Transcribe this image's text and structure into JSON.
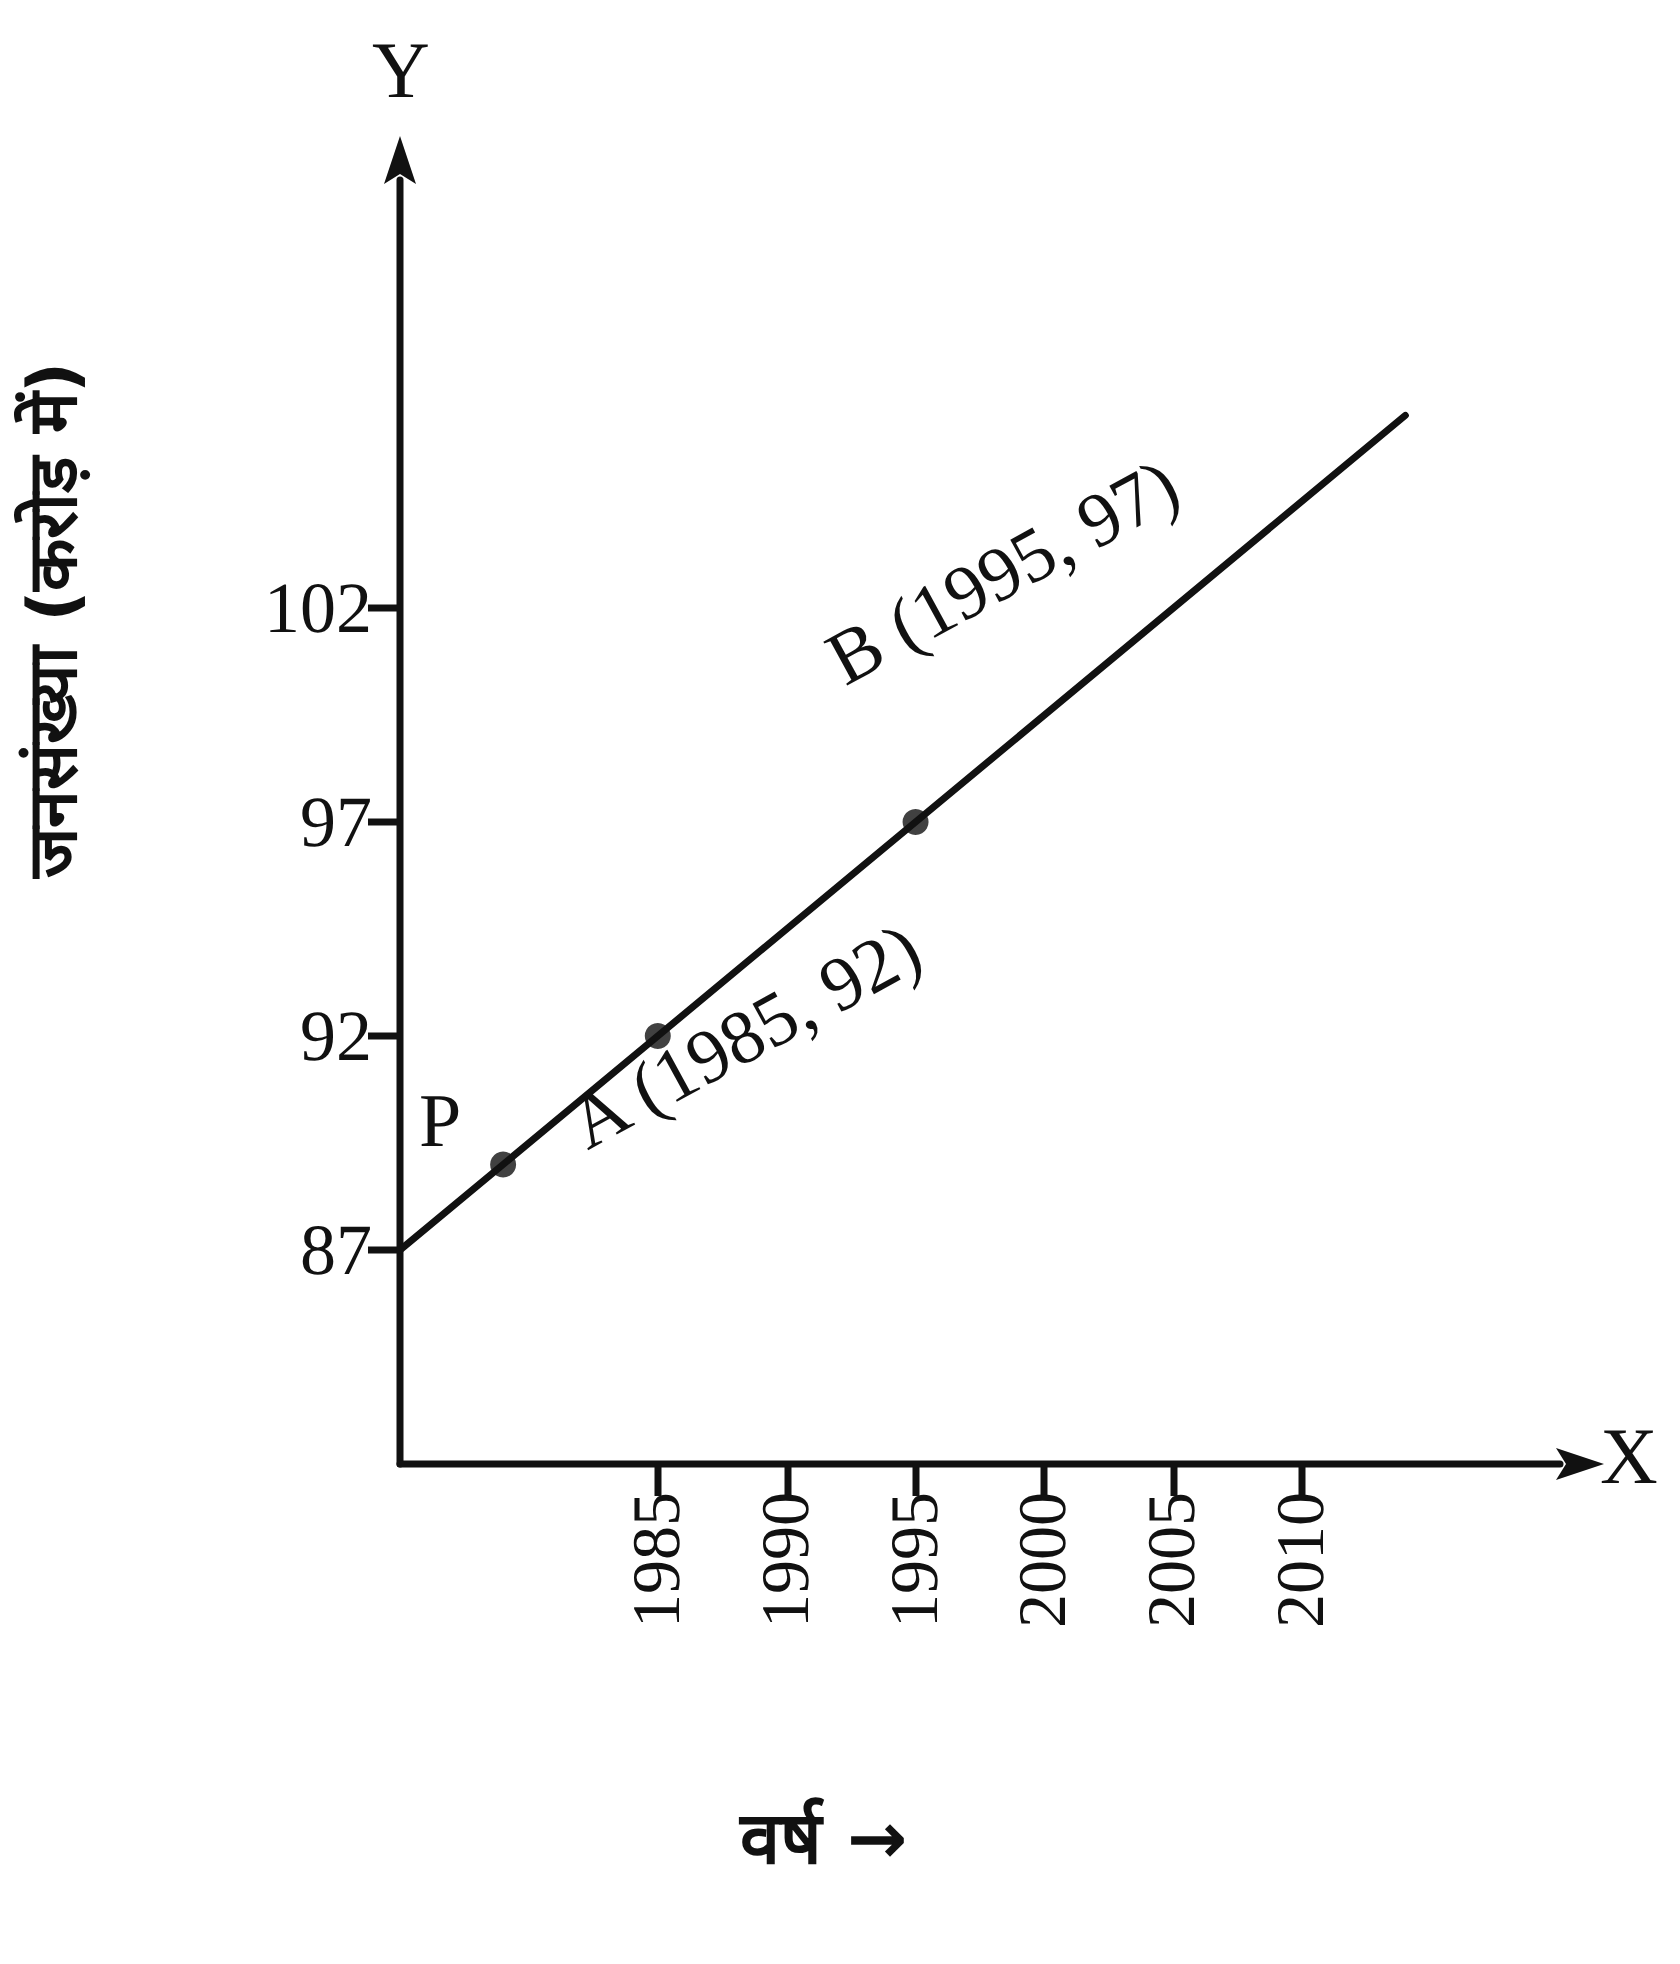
{
  "chart_data": {
    "type": "line",
    "xlabel": "वर्ष →",
    "ylabel": "जनसंख्या (करोड़ में)",
    "xlim": [
      1975,
      2020
    ],
    "xticks": [
      1985,
      1990,
      1995,
      2000,
      2005,
      2010
    ],
    "ylim": [
      82,
      112
    ],
    "yticks": [
      87,
      92,
      97,
      102
    ],
    "series": [
      {
        "color": "#111111",
        "x": [
          1975,
          2014
        ],
        "values": [
          87,
          106.5
        ],
        "marker": "none"
      },
      {
        "type": "scatter",
        "color": "#111111",
        "x": [
          1979,
          1985,
          1995
        ],
        "values": [
          89,
          92,
          97
        ],
        "marker": "circle"
      }
    ],
    "annotations": [
      "Y",
      "X",
      {
        "text": "P",
        "x": 1979,
        "y": 89
      },
      {
        "text": "A (1985, 92)",
        "x": 1985,
        "y": 92
      },
      {
        "text": "B (1995, 97)",
        "x": 1995,
        "y": 97
      }
    ],
    "grid": false
  }
}
